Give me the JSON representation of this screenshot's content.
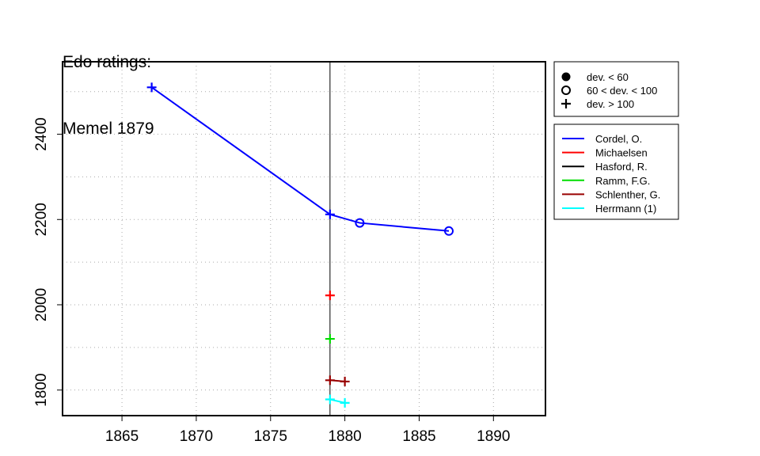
{
  "title_lines": [
    "Edo ratings:",
    "Memel 1879"
  ],
  "chart_data": {
    "type": "line",
    "title": "Edo ratings: Memel 1879",
    "xlabel": "",
    "ylabel": "",
    "xlim": [
      1861,
      1893.5
    ],
    "ylim": [
      1740,
      2570
    ],
    "xticks": [
      1865,
      1870,
      1875,
      1880,
      1885,
      1890
    ],
    "yticks": [
      1800,
      2000,
      2200,
      2400
    ],
    "grid": true,
    "reference_line_x": 1879,
    "symbol_legend": [
      {
        "label": "dev. < 60",
        "symbol": "filled-circle"
      },
      {
        "label": "60 < dev. < 100",
        "symbol": "open-circle"
      },
      {
        "label": "dev. > 100",
        "symbol": "plus"
      }
    ],
    "series": [
      {
        "name": "Cordel, O.",
        "color": "#0000ff",
        "points": [
          {
            "x": 1867,
            "y": 2510,
            "marker": "plus"
          },
          {
            "x": 1879,
            "y": 2212,
            "marker": "plus"
          },
          {
            "x": 1881,
            "y": 2192,
            "marker": "open-circle"
          },
          {
            "x": 1887,
            "y": 2173,
            "marker": "open-circle"
          }
        ]
      },
      {
        "name": "Michaelsen",
        "color": "#ff0000",
        "points": [
          {
            "x": 1879,
            "y": 2022,
            "marker": "plus"
          }
        ]
      },
      {
        "name": "Hasford, R.",
        "color": "#000000",
        "points": []
      },
      {
        "name": "Ramm, F.G.",
        "color": "#00dd00",
        "points": [
          {
            "x": 1879,
            "y": 1920,
            "marker": "plus"
          }
        ]
      },
      {
        "name": "Schlenther, G.",
        "color": "#990000",
        "points": [
          {
            "x": 1879,
            "y": 1823,
            "marker": "plus"
          },
          {
            "x": 1880,
            "y": 1820,
            "marker": "plus"
          }
        ]
      },
      {
        "name": "Herrmann (1)",
        "color": "#00ffff",
        "points": [
          {
            "x": 1879,
            "y": 1778,
            "marker": "plus"
          },
          {
            "x": 1880,
            "y": 1770,
            "marker": "plus"
          }
        ]
      }
    ]
  }
}
